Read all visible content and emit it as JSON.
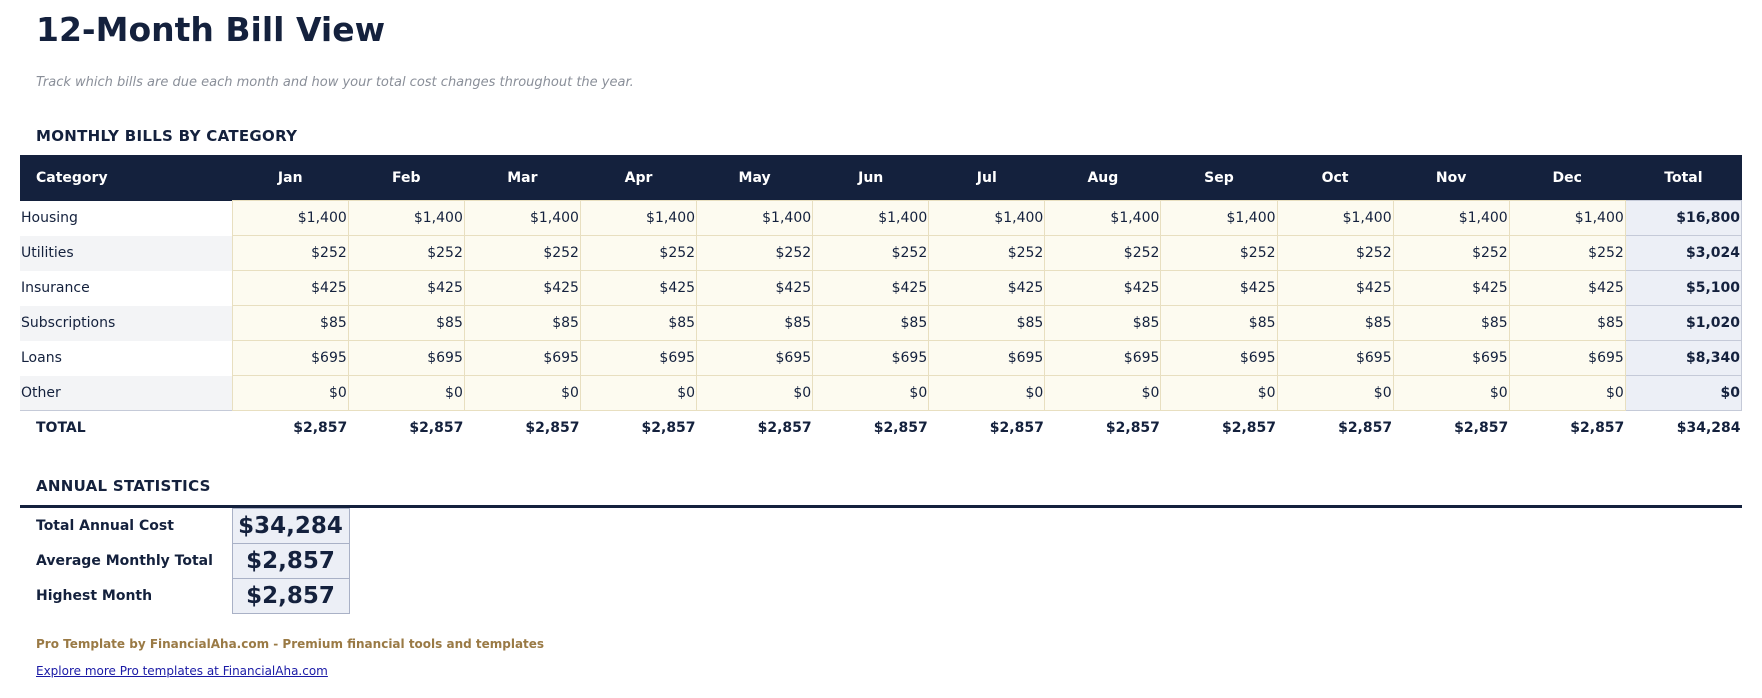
{
  "header": {
    "title": "12-Month Bill View",
    "subtitle": "Track which bills are due each month and how your total cost changes throughout the year."
  },
  "bills": {
    "heading": "MONTHLY BILLS BY CATEGORY",
    "columns": [
      "Category",
      "Jan",
      "Feb",
      "Mar",
      "Apr",
      "May",
      "Jun",
      "Jul",
      "Aug",
      "Sep",
      "Oct",
      "Nov",
      "Dec",
      "Total"
    ],
    "rows": [
      [
        "Housing",
        "$1,400",
        "$1,400",
        "$1,400",
        "$1,400",
        "$1,400",
        "$1,400",
        "$1,400",
        "$1,400",
        "$1,400",
        "$1,400",
        "$1,400",
        "$1,400",
        "$16,800"
      ],
      [
        "Utilities",
        "$252",
        "$252",
        "$252",
        "$252",
        "$252",
        "$252",
        "$252",
        "$252",
        "$252",
        "$252",
        "$252",
        "$252",
        "$3,024"
      ],
      [
        "Insurance",
        "$425",
        "$425",
        "$425",
        "$425",
        "$425",
        "$425",
        "$425",
        "$425",
        "$425",
        "$425",
        "$425",
        "$425",
        "$5,100"
      ],
      [
        "Subscriptions",
        "$85",
        "$85",
        "$85",
        "$85",
        "$85",
        "$85",
        "$85",
        "$85",
        "$85",
        "$85",
        "$85",
        "$85",
        "$1,020"
      ],
      [
        "Loans",
        "$695",
        "$695",
        "$695",
        "$695",
        "$695",
        "$695",
        "$695",
        "$695",
        "$695",
        "$695",
        "$695",
        "$695",
        "$8,340"
      ],
      [
        "Other",
        "$0",
        "$0",
        "$0",
        "$0",
        "$0",
        "$0",
        "$0",
        "$0",
        "$0",
        "$0",
        "$0",
        "$0",
        "$0"
      ]
    ],
    "total_row": [
      "TOTAL",
      "$2,857",
      "$2,857",
      "$2,857",
      "$2,857",
      "$2,857",
      "$2,857",
      "$2,857",
      "$2,857",
      "$2,857",
      "$2,857",
      "$2,857",
      "$2,857",
      "$34,284"
    ]
  },
  "stats": {
    "heading": "ANNUAL STATISTICS",
    "rows": [
      [
        "Total Annual Cost",
        "$34,284"
      ],
      [
        "Average Monthly Total",
        "$2,857"
      ],
      [
        "Highest Month",
        "$2,857"
      ]
    ]
  },
  "footer": {
    "credit": "Pro Template by FinancialAha.com - Premium financial tools and templates",
    "link": "Explore more Pro templates at FinancialAha.com"
  }
}
